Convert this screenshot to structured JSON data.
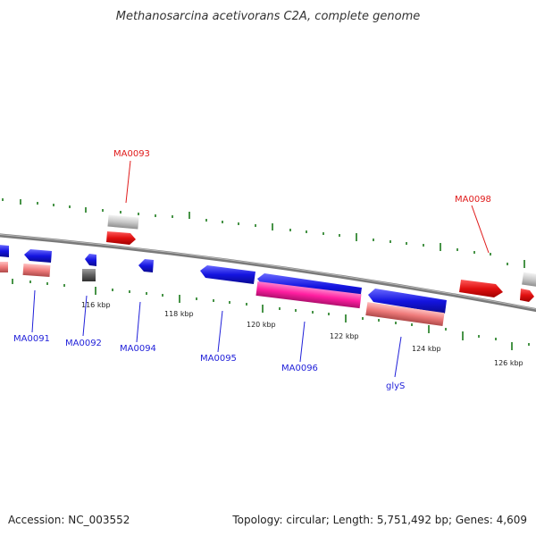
{
  "header": {
    "title": "Methanosarcina acetivorans C2A, complete genome"
  },
  "footer": {
    "accession": "Accession: NC_003552",
    "summary": "Topology: circular; Length: 5,751,492 bp; Genes: 4,609"
  },
  "scale": {
    "labels": [
      "116 kbp",
      "118 kbp",
      "120 kbp",
      "122 kbp",
      "124 kbp",
      "126 kbp"
    ]
  },
  "features": [
    {
      "id": "MA0091",
      "label": "MA0091",
      "strand": "-",
      "color": "#1f1fd9"
    },
    {
      "id": "MA0092",
      "label": "MA0092",
      "strand": "-",
      "color": "#1f1fd9"
    },
    {
      "id": "MA0093",
      "label": "MA0093",
      "strand": "+",
      "color": "#e01a1a"
    },
    {
      "id": "MA0094",
      "label": "MA0094",
      "strand": "-",
      "color": "#1f1fd9"
    },
    {
      "id": "MA0095",
      "label": "MA0095",
      "strand": "-",
      "color": "#1f1fd9"
    },
    {
      "id": "MA0096",
      "label": "MA0096",
      "strand": "-",
      "color": "#1f1fd9"
    },
    {
      "id": "glyS",
      "label": "glyS",
      "strand": "-",
      "color": "#1f1fd9"
    },
    {
      "id": "MA0098",
      "label": "MA0098",
      "strand": "+",
      "color": "#e01a1a"
    }
  ],
  "colors": {
    "forward_cds": "#e01a1a",
    "reverse_cds": "#1f1fd9",
    "rna": "#ff2fa8",
    "pseudo_light": "#f08080",
    "grey_gene": "#bfbfbf",
    "dark_grey_gene": "#555555",
    "backbone": "#808080",
    "ticks": "#1a7a1a"
  }
}
